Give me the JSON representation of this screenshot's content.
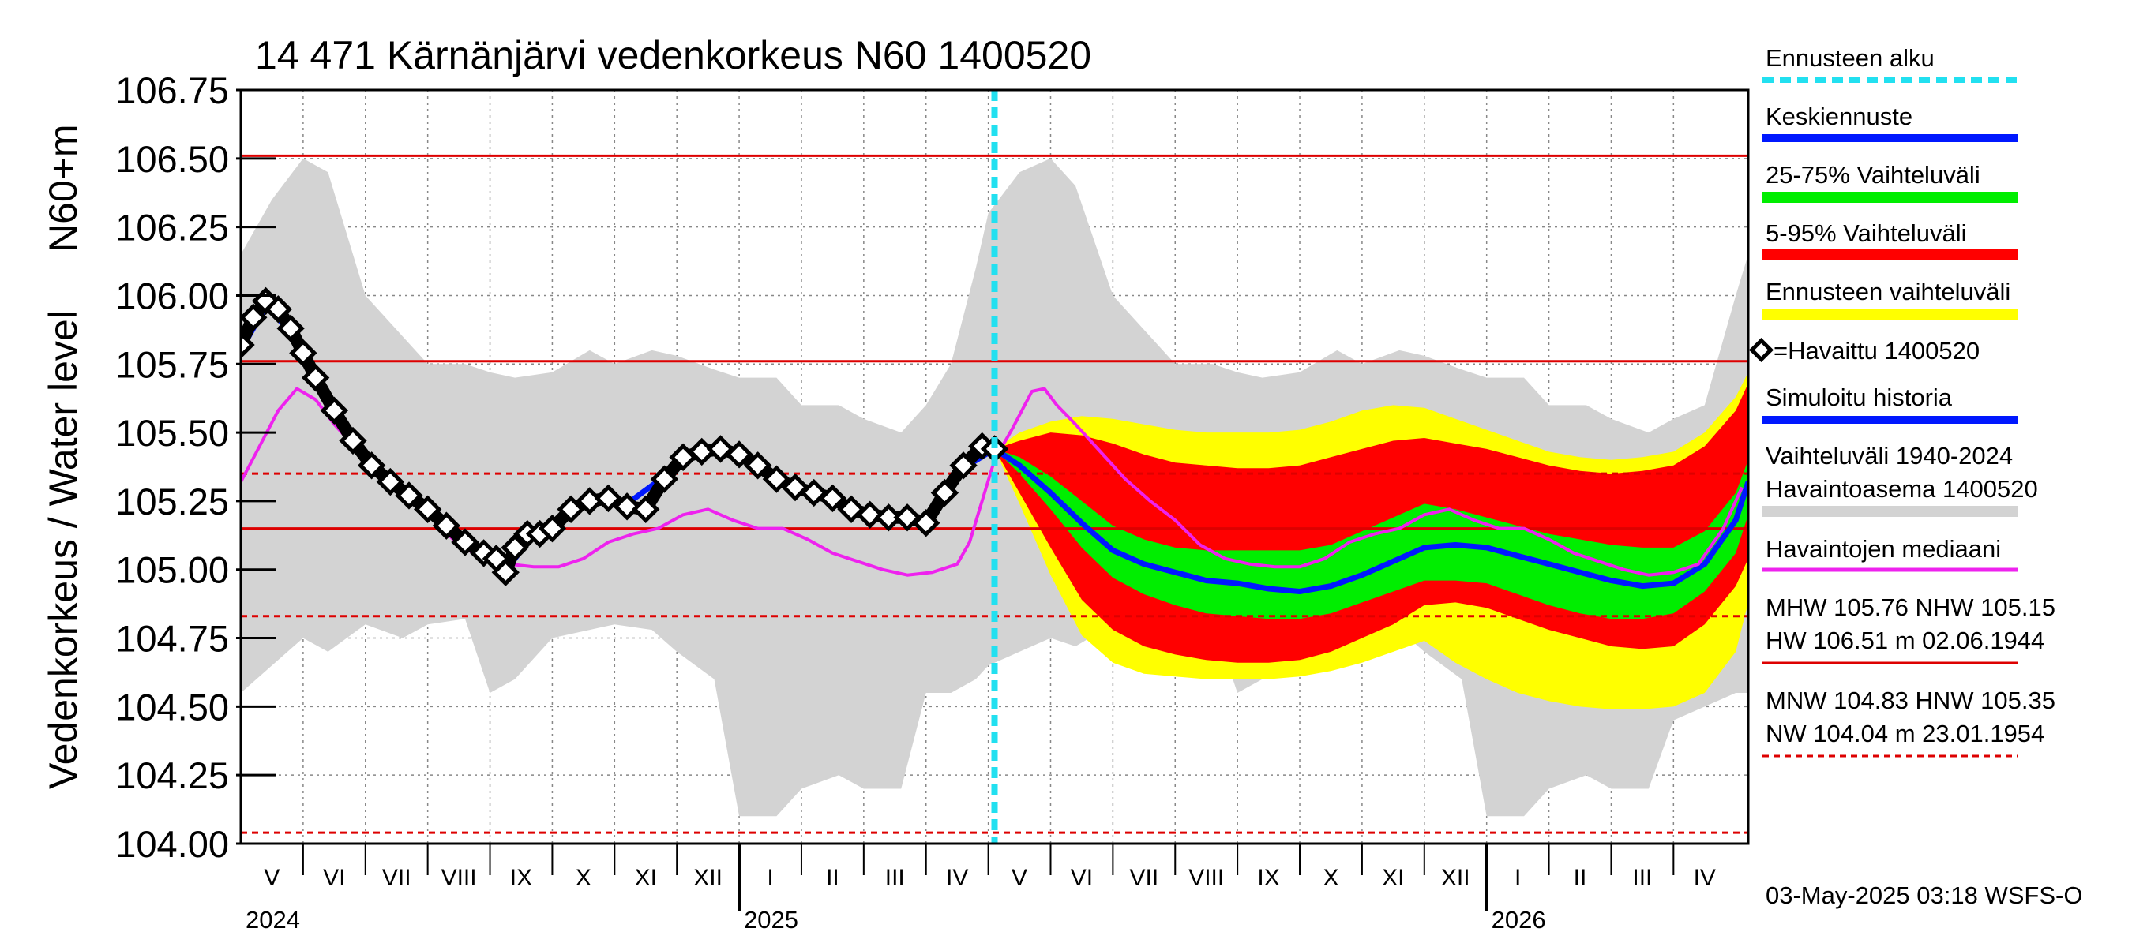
{
  "chart_data": {
    "type": "area",
    "title": "14 471 Kärnänjärvi vedenkorkeus N60 1400520",
    "ylabel_main": "Vedenkorkeus / Water level",
    "ylabel_unit": "N60+m",
    "ylim": [
      104.0,
      106.75
    ],
    "yticks": [
      "106.75",
      "106.50",
      "106.25",
      "106.00",
      "105.75",
      "105.50",
      "105.25",
      "105.00",
      "104.75",
      "104.50",
      "104.25",
      "104.00"
    ],
    "ytick_values": [
      106.75,
      106.5,
      106.25,
      106.0,
      105.75,
      105.5,
      105.25,
      105.0,
      104.75,
      104.5,
      104.25,
      104.0
    ],
    "x_range_months": [
      0,
      24.2
    ],
    "months": [
      "V",
      "VI",
      "VII",
      "VIII",
      "IX",
      "X",
      "XI",
      "XII",
      "I",
      "II",
      "III",
      "IV",
      "V",
      "VI",
      "VII",
      "VIII",
      "IX",
      "X",
      "XI",
      "XII",
      "I",
      "II",
      "III",
      "IV"
    ],
    "years": [
      {
        "label": "2024",
        "month": 0
      },
      {
        "label": "2025",
        "month": 8
      },
      {
        "label": "2026",
        "month": 20
      }
    ],
    "forecast_start_month": 12.1,
    "grid": true,
    "reference_lines": [
      {
        "value": 106.51,
        "style": "solid"
      },
      {
        "value": 105.76,
        "style": "solid"
      },
      {
        "value": 105.15,
        "style": "solid"
      },
      {
        "value": 105.35,
        "style": "dashed"
      },
      {
        "value": 104.83,
        "style": "dashed"
      },
      {
        "value": 104.04,
        "style": "dashed"
      }
    ],
    "historical_range": {
      "month": [
        0,
        0.5,
        1,
        1.4,
        2,
        2.6,
        3,
        3.6,
        4,
        4.4,
        5,
        5.6,
        6,
        6.6,
        7,
        7.6,
        8,
        8.6,
        9,
        9.6,
        10,
        10.6,
        11,
        11.4,
        11.8,
        12,
        12.5,
        13,
        13.4,
        14,
        14.6,
        15,
        15.6,
        16,
        16.4,
        17,
        17.6,
        18,
        18.6,
        19,
        19.6,
        20,
        20.6,
        21,
        21.6,
        22,
        22.6,
        23,
        23.5,
        24,
        24.2
      ],
      "high": [
        106.15,
        106.35,
        106.5,
        106.45,
        106.0,
        105.85,
        105.75,
        105.75,
        105.72,
        105.7,
        105.72,
        105.8,
        105.75,
        105.8,
        105.78,
        105.73,
        105.7,
        105.7,
        105.6,
        105.6,
        105.55,
        105.5,
        105.6,
        105.75,
        106.1,
        106.3,
        106.45,
        106.5,
        106.4,
        106.0,
        105.85,
        105.75,
        105.75,
        105.72,
        105.7,
        105.72,
        105.8,
        105.75,
        105.8,
        105.78,
        105.73,
        105.7,
        105.7,
        105.6,
        105.6,
        105.55,
        105.5,
        105.55,
        105.6,
        106.0,
        106.15
      ],
      "low": [
        104.55,
        104.65,
        104.75,
        104.7,
        104.8,
        104.75,
        104.8,
        104.82,
        104.55,
        104.6,
        104.75,
        104.78,
        104.8,
        104.78,
        104.7,
        104.6,
        104.1,
        104.1,
        104.2,
        104.25,
        104.2,
        104.2,
        104.55,
        104.55,
        104.6,
        104.65,
        104.7,
        104.75,
        104.72,
        104.8,
        104.75,
        104.8,
        104.82,
        104.55,
        104.6,
        104.75,
        104.78,
        104.8,
        104.78,
        104.7,
        104.6,
        104.1,
        104.1,
        104.2,
        104.25,
        104.2,
        104.2,
        104.45,
        104.5,
        104.55,
        104.55
      ]
    },
    "observed": {
      "name": "=Havaittu 1400520",
      "month": [
        0,
        0.2,
        0.4,
        0.6,
        0.8,
        1.0,
        1.2,
        1.5,
        1.8,
        2.1,
        2.4,
        2.7,
        3.0,
        3.3,
        3.6,
        3.9,
        4.1,
        4.25,
        4.4,
        4.6,
        4.8,
        5.0,
        5.3,
        5.6,
        5.9,
        6.2,
        6.5,
        6.8,
        7.1,
        7.4,
        7.7,
        8.0,
        8.3,
        8.6,
        8.9,
        9.2,
        9.5,
        9.8,
        10.1,
        10.4,
        10.7,
        11.0,
        11.3,
        11.6,
        11.9,
        12.1
      ],
      "value": [
        105.82,
        105.92,
        105.98,
        105.95,
        105.88,
        105.79,
        105.7,
        105.58,
        105.47,
        105.38,
        105.32,
        105.27,
        105.22,
        105.16,
        105.1,
        105.06,
        105.04,
        104.99,
        105.08,
        105.13,
        105.13,
        105.15,
        105.22,
        105.25,
        105.26,
        105.23,
        105.22,
        105.33,
        105.41,
        105.43,
        105.44,
        105.42,
        105.38,
        105.33,
        105.3,
        105.28,
        105.26,
        105.22,
        105.2,
        105.19,
        105.19,
        105.17,
        105.28,
        105.38,
        105.45,
        105.44
      ]
    },
    "median": {
      "name": "Havaintojen mediaani",
      "month": [
        0,
        0.3,
        0.6,
        0.9,
        1.2,
        1.5,
        1.9,
        2.3,
        2.7,
        3.1,
        3.5,
        3.9,
        4.3,
        4.7,
        5.1,
        5.5,
        5.9,
        6.3,
        6.7,
        7.1,
        7.5,
        7.9,
        8.3,
        8.7,
        9.1,
        9.5,
        9.9,
        10.3,
        10.7,
        11.1,
        11.5,
        11.7,
        11.9,
        12.1,
        12.4,
        12.7,
        12.9,
        13.1,
        13.4,
        13.8,
        14.2,
        14.6,
        15.0,
        15.4,
        15.8,
        16.2,
        16.6,
        17.0,
        17.4,
        17.8,
        18.2,
        18.6,
        19.0,
        19.4,
        19.8,
        20.2,
        20.6,
        21.0,
        21.4,
        21.8,
        22.2,
        22.6,
        23.0,
        23.4,
        23.8,
        24.1
      ],
      "value": [
        105.32,
        105.45,
        105.58,
        105.66,
        105.62,
        105.53,
        105.43,
        105.33,
        105.25,
        105.18,
        105.09,
        105.04,
        105.02,
        105.01,
        105.01,
        105.04,
        105.1,
        105.13,
        105.15,
        105.2,
        105.22,
        105.18,
        105.15,
        105.15,
        105.11,
        105.06,
        105.03,
        105.0,
        104.98,
        104.99,
        105.02,
        105.1,
        105.25,
        105.4,
        105.52,
        105.65,
        105.66,
        105.6,
        105.53,
        105.43,
        105.33,
        105.25,
        105.18,
        105.09,
        105.04,
        105.02,
        105.01,
        105.01,
        105.04,
        105.1,
        105.13,
        105.15,
        105.2,
        105.22,
        105.18,
        105.15,
        105.15,
        105.11,
        105.06,
        105.03,
        105.0,
        104.98,
        104.99,
        105.02,
        105.15,
        105.3
      ]
    },
    "simulated": {
      "name": "Simuloitu historia",
      "month": [
        0,
        0.4,
        0.8,
        1.2,
        1.8,
        2.4,
        3.0,
        3.6,
        4.1,
        4.3,
        4.6,
        5.0,
        5.6,
        6.2,
        6.8,
        7.4,
        8.0,
        8.6,
        9.2,
        9.8,
        10.4,
        11.0,
        11.6,
        12.1
      ],
      "value": [
        105.8,
        105.96,
        105.87,
        105.69,
        105.46,
        105.31,
        105.21,
        105.09,
        105.03,
        105.01,
        105.1,
        105.16,
        105.25,
        105.24,
        105.34,
        105.44,
        105.42,
        105.33,
        105.28,
        105.22,
        105.19,
        105.17,
        105.37,
        105.44
      ]
    },
    "forecast": {
      "month": [
        12.1,
        12.5,
        13.0,
        13.5,
        14.0,
        14.5,
        15.0,
        15.5,
        16.0,
        16.5,
        17.0,
        17.5,
        18.0,
        18.5,
        19.0,
        19.5,
        20.0,
        20.5,
        21.0,
        21.5,
        22.0,
        22.5,
        23.0,
        23.5,
        24.0,
        24.2
      ],
      "mean": [
        105.44,
        105.38,
        105.28,
        105.17,
        105.07,
        105.02,
        104.99,
        104.96,
        104.95,
        104.93,
        104.92,
        104.94,
        104.98,
        105.03,
        105.08,
        105.09,
        105.08,
        105.05,
        105.02,
        104.99,
        104.96,
        104.94,
        104.95,
        105.02,
        105.18,
        105.32
      ],
      "p25": [
        105.44,
        105.35,
        105.22,
        105.08,
        104.97,
        104.91,
        104.87,
        104.84,
        104.83,
        104.82,
        104.82,
        104.84,
        104.88,
        104.92,
        104.96,
        104.96,
        104.95,
        104.91,
        104.87,
        104.84,
        104.82,
        104.82,
        104.84,
        104.92,
        105.06,
        105.2
      ],
      "p75": [
        105.44,
        105.41,
        105.34,
        105.25,
        105.16,
        105.11,
        105.08,
        105.07,
        105.07,
        105.07,
        105.07,
        105.09,
        105.14,
        105.19,
        105.24,
        105.22,
        105.19,
        105.16,
        105.13,
        105.11,
        105.09,
        105.08,
        105.08,
        105.14,
        105.28,
        105.4
      ],
      "p5": [
        105.44,
        105.28,
        105.08,
        104.89,
        104.78,
        104.72,
        104.69,
        104.67,
        104.66,
        104.66,
        104.67,
        104.7,
        104.75,
        104.8,
        104.87,
        104.88,
        104.86,
        104.82,
        104.78,
        104.75,
        104.72,
        104.71,
        104.72,
        104.8,
        104.94,
        105.04
      ],
      "p95": [
        105.44,
        105.47,
        105.5,
        105.49,
        105.46,
        105.42,
        105.39,
        105.38,
        105.37,
        105.37,
        105.38,
        105.41,
        105.44,
        105.47,
        105.48,
        105.46,
        105.44,
        105.41,
        105.38,
        105.36,
        105.35,
        105.36,
        105.38,
        105.45,
        105.58,
        105.68
      ],
      "min": [
        105.44,
        105.24,
        104.98,
        104.76,
        104.66,
        104.62,
        104.61,
        104.6,
        104.6,
        104.6,
        104.61,
        104.63,
        104.66,
        104.7,
        104.74,
        104.66,
        104.6,
        104.55,
        104.52,
        104.5,
        104.49,
        104.49,
        104.5,
        104.55,
        104.7,
        104.88
      ],
      "max": [
        105.44,
        105.5,
        105.54,
        105.56,
        105.55,
        105.53,
        105.51,
        105.5,
        105.5,
        105.5,
        105.51,
        105.54,
        105.58,
        105.6,
        105.59,
        105.55,
        105.51,
        105.47,
        105.43,
        105.41,
        105.4,
        105.41,
        105.43,
        105.5,
        105.63,
        105.72
      ]
    },
    "colors": {
      "forecast_start": "#22e0f0",
      "mean": "#0018ff",
      "p25_75": "#00ee00",
      "p5_95": "#ff0000",
      "range": "#ffff00",
      "simulated": "#0018ff",
      "historical": "#d3d3d3",
      "median": "#ee22ee",
      "observed": "#000000",
      "ref_line": "#dd0000"
    }
  },
  "legend": [
    {
      "label": "Ennusteen alku",
      "swatch": "dashed-cyan"
    },
    {
      "label": "Keskiennuste",
      "swatch": "blue"
    },
    {
      "label": "25-75% Vaihteluväli",
      "swatch": "green"
    },
    {
      "label": "5-95% Vaihteluväli",
      "swatch": "red"
    },
    {
      "label": "Ennusteen vaihteluväli",
      "swatch": "yellow"
    },
    {
      "label": "=Havaittu 1400520",
      "swatch": "diamond"
    },
    {
      "label": "Simuloitu historia",
      "swatch": "blue"
    },
    {
      "label": "Vaihteluväli 1940-2024",
      "swatch": "none"
    },
    {
      "label": " Havaintoasema 1400520",
      "swatch": "gray"
    },
    {
      "label": "Havaintojen mediaani",
      "swatch": "magenta"
    }
  ],
  "stats": {
    "hw_line1": "MHW 105.76 NHW 105.15",
    "hw_line2": "HW 106.51 m 02.06.1944",
    "nw_line1": "MNW 104.83 HNW 105.35",
    "nw_line2": "NW 104.04 m 23.01.1954"
  },
  "footer": "03-May-2025 03:18 WSFS-O"
}
